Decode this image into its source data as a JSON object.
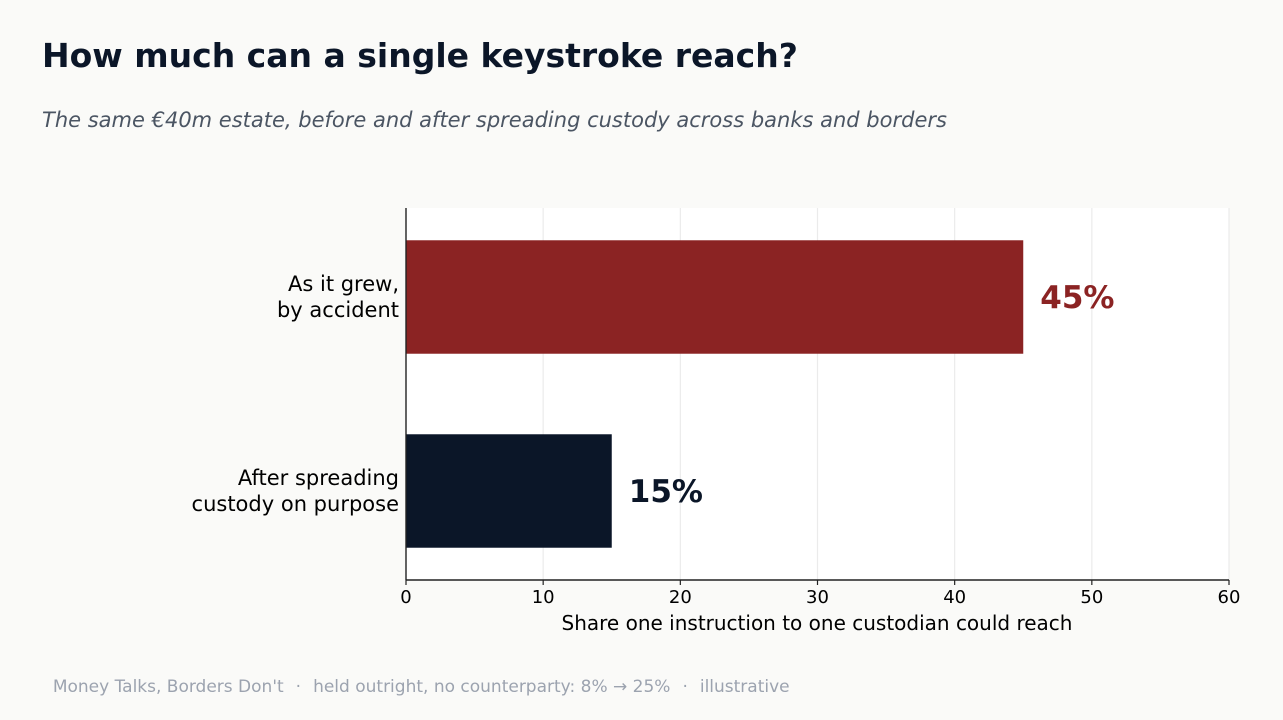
{
  "header": {
    "title": "How much can a single keystroke reach?",
    "subtitle": "The same €40m estate, before and after spreading custody across banks and borders"
  },
  "footer": {
    "items": [
      "Money Talks, Borders Don't",
      "held outright, no counterparty: 8% → 25%",
      "illustrative"
    ],
    "separator": "·"
  },
  "chart_data": {
    "type": "bar",
    "orientation": "horizontal",
    "title": "How much can a single keystroke reach?",
    "subtitle": "The same €40m estate, before and after spreading custody across banks and borders",
    "xlabel": "Share one instruction to one custodian could reach",
    "ylabel": "",
    "xlim": [
      0,
      60
    ],
    "xticks": [
      0,
      10,
      20,
      30,
      40,
      50,
      60
    ],
    "grid": true,
    "categories": [
      [
        "As it grew,",
        "by accident"
      ],
      [
        "After spreading",
        "custody on purpose"
      ]
    ],
    "values": [
      45,
      15
    ],
    "value_labels": [
      "45%",
      "15%"
    ],
    "colors": [
      "#8b2323",
      "#0b1628"
    ]
  }
}
